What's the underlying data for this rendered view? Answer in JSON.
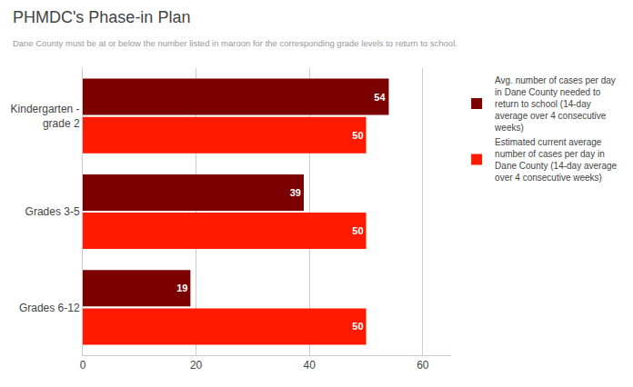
{
  "chart_data": {
    "type": "bar",
    "orientation": "horizontal",
    "title": "PHMDC's Phase-in Plan",
    "subtitle": "Dane County must be at or below the number listed in maroon for the corresponding grade levels to return to school.",
    "categories": [
      "Grades 6-12",
      "Grades 3-5",
      "Kindergarten -\ngrade 2"
    ],
    "series": [
      {
        "name": "Avg. number of cases per day\nin Dane County needed to\nreturn to school (14-day\naverage over 4 consecutive\nweeks)",
        "color": "#7b0000",
        "values": [
          19,
          39,
          54
        ]
      },
      {
        "name": "Estimated current average\nnumber of cases per day in\nDane County (14-day average\nover 4 consecutive weeks)",
        "color": "#ff1a00",
        "values": [
          50,
          50,
          50
        ]
      }
    ],
    "xlim": [
      0,
      65
    ],
    "xticks": [
      0,
      20,
      40,
      60
    ],
    "grid": true,
    "legend": "right",
    "data_labels": true
  }
}
